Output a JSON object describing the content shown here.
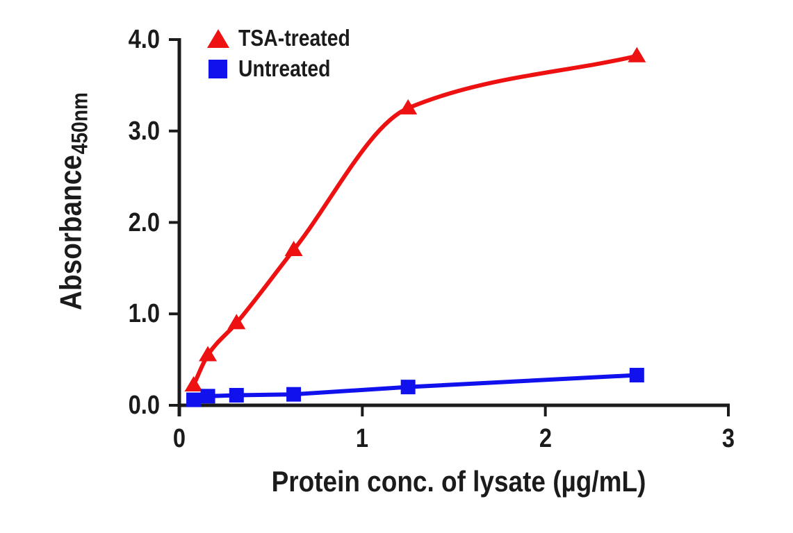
{
  "figure": {
    "background": "#ffffff",
    "axis_color": "#1b1b1b",
    "text_color": "#1b1b1b"
  },
  "chart_data": {
    "type": "line",
    "title": "",
    "xlabel": "Protein conc. of lysate (µg/mL)",
    "ylabel": "Absorbance",
    "ylabel_subscript": "450nm",
    "xlim": [
      0,
      3
    ],
    "ylim": [
      0,
      4
    ],
    "xticks": [
      {
        "value": 0,
        "label": "0"
      },
      {
        "value": 1,
        "label": "1"
      },
      {
        "value": 2,
        "label": "2"
      },
      {
        "value": 3,
        "label": "3"
      }
    ],
    "yticks": [
      {
        "value": 0,
        "label": "0.0"
      },
      {
        "value": 1,
        "label": "1.0"
      },
      {
        "value": 2,
        "label": "2.0"
      },
      {
        "value": 3,
        "label": "3.0"
      },
      {
        "value": 4,
        "label": "4.0"
      }
    ],
    "grid": false,
    "legend_position": "top-left-inside",
    "series": [
      {
        "name": "TSA-treated",
        "color": "#ee1111",
        "marker": "triangle",
        "smooth": true,
        "x": [
          0.078,
          0.156,
          0.3125,
          0.625,
          1.25,
          2.5
        ],
        "y": [
          0.22,
          0.55,
          0.9,
          1.7,
          3.25,
          3.82
        ]
      },
      {
        "name": "Untreated",
        "color": "#1111ee",
        "marker": "square",
        "smooth": false,
        "x": [
          0.078,
          0.156,
          0.3125,
          0.625,
          1.25,
          2.5
        ],
        "y": [
          0.06,
          0.1,
          0.11,
          0.12,
          0.2,
          0.33
        ]
      }
    ]
  }
}
